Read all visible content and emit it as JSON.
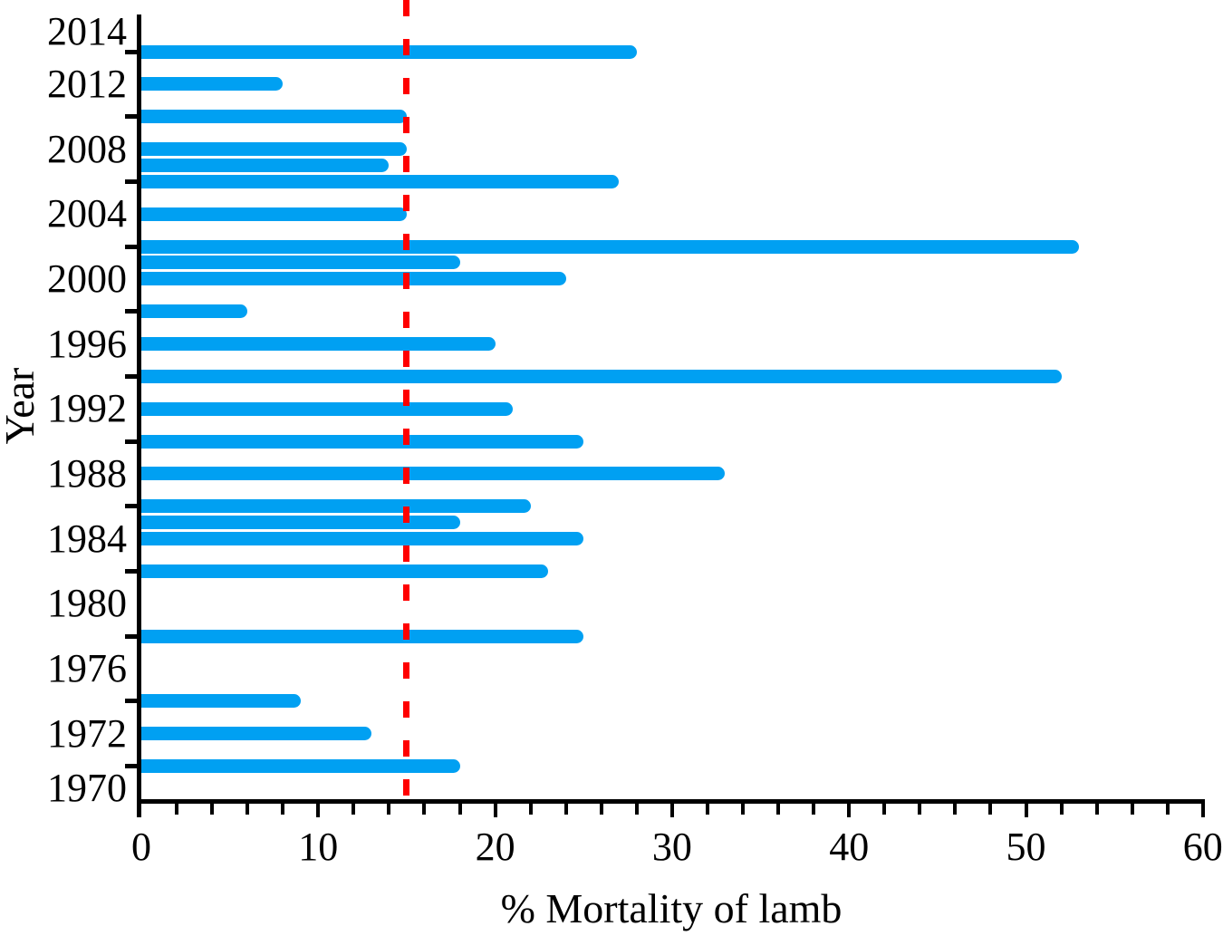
{
  "chart_data": {
    "type": "bar",
    "orientation": "horizontal",
    "title": "",
    "xlabel": "% Mortality of lamb",
    "ylabel": "Year",
    "xlim": [
      0,
      60
    ],
    "x_major_ticks": [
      0,
      10,
      20,
      30,
      40,
      50,
      60
    ],
    "x_minor_tick_step": 2,
    "y_major_tick_years": [
      2014,
      2010,
      2006,
      2002,
      1998,
      1994,
      1990,
      1986,
      1982,
      1978,
      1974,
      1970
    ],
    "y_axis_labels": [
      "2014",
      "2012",
      "2008",
      "2004",
      "2000",
      "1996",
      "1992",
      "1988",
      "1984",
      "1980",
      "1976",
      "1972",
      "1970"
    ],
    "series": [
      {
        "name": "% Mortality of lamb",
        "points": [
          {
            "year": 2014,
            "value": 28
          },
          {
            "year": 2012,
            "value": 8
          },
          {
            "year": 2010,
            "value": 15
          },
          {
            "year": 2008,
            "value": 15
          },
          {
            "year": 2007,
            "value": 14
          },
          {
            "year": 2006,
            "value": 27
          },
          {
            "year": 2004,
            "value": 15
          },
          {
            "year": 2002,
            "value": 53
          },
          {
            "year": 2001,
            "value": 18
          },
          {
            "year": 2000,
            "value": 24
          },
          {
            "year": 1998,
            "value": 6
          },
          {
            "year": 1996,
            "value": 20
          },
          {
            "year": 1994,
            "value": 52
          },
          {
            "year": 1992,
            "value": 21
          },
          {
            "year": 1990,
            "value": 25
          },
          {
            "year": 1988,
            "value": 33
          },
          {
            "year": 1986,
            "value": 22
          },
          {
            "year": 1985,
            "value": 18
          },
          {
            "year": 1984,
            "value": 25
          },
          {
            "year": 1982,
            "value": 23
          },
          {
            "year": 1978,
            "value": 25
          },
          {
            "year": 1974,
            "value": 9
          },
          {
            "year": 1972,
            "value": 13
          },
          {
            "year": 1970,
            "value": 18
          }
        ]
      }
    ],
    "reference_line": {
      "value": 15,
      "orientation": "vertical",
      "style": "dashed",
      "color": "#ff0000"
    },
    "bar_color": "#00a0f2",
    "axis_color": "#000000",
    "background": "#ffffff",
    "grid": false,
    "legend": false
  }
}
